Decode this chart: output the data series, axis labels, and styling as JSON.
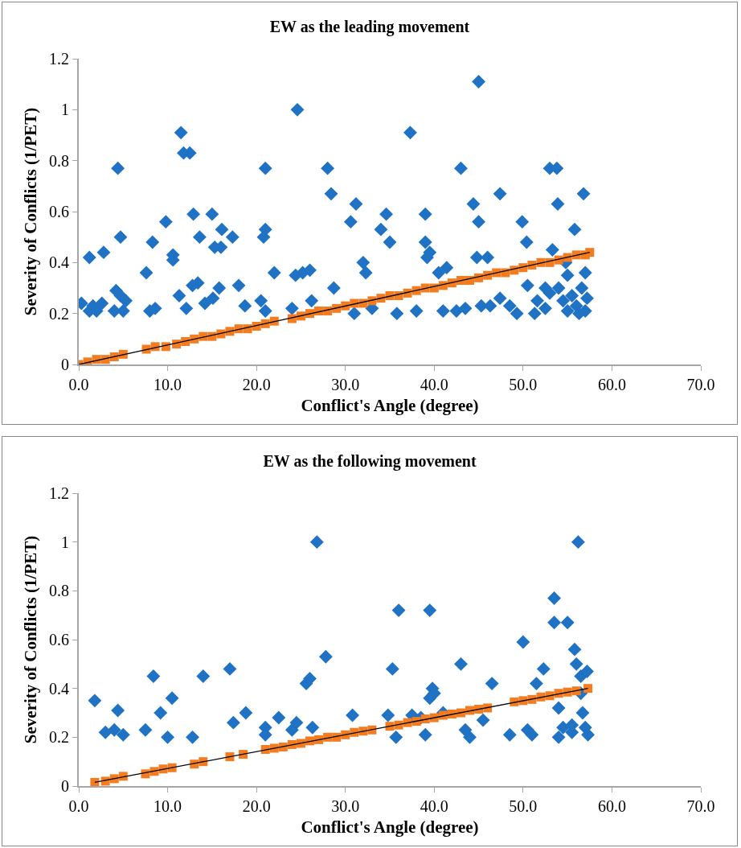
{
  "chart_data": [
    {
      "type": "scatter",
      "title": "EW as the leading movement",
      "xlabel": "Conflict's Angle (degree)",
      "ylabel": "Severity of Conflicts (1/PET)",
      "xlim": [
        0,
        70
      ],
      "ylim": [
        0,
        1.2
      ],
      "xticks": [
        {
          "value": 0,
          "label": "0.0"
        },
        {
          "value": 10,
          "label": "10.0"
        },
        {
          "value": 20,
          "label": "20.0"
        },
        {
          "value": 30,
          "label": "30.0"
        },
        {
          "value": 40,
          "label": "40.0"
        },
        {
          "value": 50,
          "label": "50.0"
        },
        {
          "value": 60,
          "label": "60.0"
        },
        {
          "value": 70,
          "label": "70.0"
        }
      ],
      "yticks": [
        0,
        0.2,
        0.4,
        0.6,
        0.8,
        1,
        1.2
      ],
      "grid": false,
      "series": [
        {
          "type": "scatter",
          "marker": "diamond",
          "color": "#1f72c4",
          "x": [
            0.3,
            1.2,
            1.2,
            1.6,
            2.0,
            2.6,
            2.8,
            4.0,
            4.2,
            4.4,
            4.7,
            4.7,
            5.0,
            5.3,
            7.6,
            8.0,
            8.3,
            8.6,
            9.8,
            10.6,
            10.6,
            11.5,
            11.3,
            11.8,
            12.1,
            12.5,
            12.8,
            12.9,
            13.6,
            13.4,
            14.2,
            15.1,
            15.0,
            15.3,
            15.8,
            16.1,
            16.0,
            17.3,
            18.0,
            18.7,
            20.5,
            20.8,
            21.0,
            21.0,
            21.0,
            22.0,
            24.4,
            24.6,
            24.0,
            25.2,
            26.0,
            26.2,
            28.0,
            28.4,
            28.7,
            30.6,
            31.2,
            31.0,
            32.0,
            32.3,
            33.0,
            34.0,
            34.6,
            35.0,
            35.8,
            37.3,
            38.0,
            39.0,
            39.0,
            39.2,
            39.5,
            40.5,
            41.0,
            41.4,
            42.5,
            43.0,
            43.5,
            44.4,
            44.8,
            45.0,
            45.0,
            45.3,
            46.0,
            46.3,
            47.4,
            47.4,
            48.5,
            49.3,
            49.9,
            50.4,
            50.5,
            51.3,
            51.6,
            52.5,
            53.0,
            53.3,
            53.8,
            53.9,
            54.0,
            54.5,
            55.0,
            55.5,
            55.8,
            56.0,
            56.3,
            56.6,
            56.8,
            57.0,
            57.0,
            57.2,
            55.0,
            54.8,
            52.5,
            53.0
          ],
          "values": [
            0.24,
            0.42,
            0.21,
            0.23,
            0.21,
            0.24,
            0.44,
            0.21,
            0.29,
            0.77,
            0.5,
            0.27,
            0.21,
            0.25,
            0.36,
            0.21,
            0.48,
            0.22,
            0.56,
            0.43,
            0.41,
            0.91,
            0.27,
            0.83,
            0.22,
            0.83,
            0.31,
            0.59,
            0.5,
            0.32,
            0.24,
            0.26,
            0.59,
            0.46,
            0.3,
            0.53,
            0.46,
            0.5,
            0.31,
            0.23,
            0.25,
            0.5,
            0.53,
            0.77,
            0.21,
            0.36,
            0.35,
            1.0,
            0.22,
            0.36,
            0.37,
            0.25,
            0.77,
            0.67,
            0.3,
            0.56,
            0.63,
            0.2,
            0.4,
            0.36,
            0.22,
            0.53,
            0.59,
            0.48,
            0.2,
            0.91,
            0.21,
            0.59,
            0.48,
            0.42,
            0.44,
            0.36,
            0.21,
            0.38,
            0.21,
            0.77,
            0.22,
            0.63,
            0.42,
            1.11,
            0.56,
            0.23,
            0.42,
            0.23,
            0.67,
            0.26,
            0.23,
            0.2,
            0.56,
            0.48,
            0.31,
            0.2,
            0.25,
            0.3,
            0.77,
            0.45,
            0.77,
            0.63,
            0.3,
            0.25,
            0.21,
            0.27,
            0.53,
            0.23,
            0.2,
            0.3,
            0.67,
            0.21,
            0.36,
            0.26,
            0.35,
            0.4,
            0.22,
            0.28
          ]
        },
        {
          "type": "scatter",
          "marker": "square",
          "color": "#f47c20",
          "x": [
            0,
            1,
            2,
            3,
            4,
            5,
            7.6,
            8.6,
            9.8,
            11,
            12,
            13,
            14,
            15,
            16,
            17,
            18,
            19,
            20,
            21,
            22,
            24,
            25,
            26,
            27,
            28,
            29,
            30,
            31,
            32,
            33,
            34,
            35,
            36,
            37,
            38,
            39,
            40,
            41,
            42,
            43,
            44,
            45,
            46,
            47,
            48,
            49,
            50,
            51,
            52,
            53,
            54,
            55,
            56,
            57,
            57.5
          ],
          "values": [
            0,
            0.01,
            0.02,
            0.02,
            0.03,
            0.04,
            0.06,
            0.07,
            0.07,
            0.08,
            0.09,
            0.1,
            0.11,
            0.11,
            0.12,
            0.13,
            0.14,
            0.14,
            0.15,
            0.16,
            0.17,
            0.18,
            0.19,
            0.2,
            0.21,
            0.21,
            0.22,
            0.23,
            0.24,
            0.24,
            0.25,
            0.26,
            0.27,
            0.27,
            0.28,
            0.29,
            0.3,
            0.3,
            0.31,
            0.32,
            0.33,
            0.33,
            0.34,
            0.35,
            0.36,
            0.36,
            0.37,
            0.38,
            0.39,
            0.4,
            0.4,
            0.41,
            0.42,
            0.43,
            0.43,
            0.44
          ]
        },
        {
          "type": "line",
          "marker": "none",
          "color": "#000000",
          "x": [
            0,
            57.5
          ],
          "values": [
            0,
            0.44
          ]
        }
      ]
    },
    {
      "type": "scatter",
      "title": "EW as the following movement",
      "xlabel": "Conflict's Angle (degree)",
      "ylabel": "Severity of Conflicts (1/PET)",
      "xlim": [
        0,
        70
      ],
      "ylim": [
        0,
        1.2
      ],
      "xticks": [
        {
          "value": 0,
          "label": "0.0"
        },
        {
          "value": 10,
          "label": "10.0"
        },
        {
          "value": 20,
          "label": "20.0"
        },
        {
          "value": 30,
          "label": "30.0"
        },
        {
          "value": 40,
          "label": "40.0"
        },
        {
          "value": 50,
          "label": "50.0"
        },
        {
          "value": 60,
          "label": "60.0"
        },
        {
          "value": 70,
          "label": "70.0"
        }
      ],
      "yticks": [
        0,
        0.2,
        0.4,
        0.6,
        0.8,
        1,
        1.2
      ],
      "grid": false,
      "series": [
        {
          "type": "scatter",
          "marker": "diamond",
          "color": "#1f72c4",
          "x": [
            1.8,
            3.0,
            4.0,
            4.4,
            5.0,
            7.5,
            8.4,
            9.2,
            10.0,
            10.5,
            12.8,
            14.0,
            17.0,
            17.4,
            18.8,
            21.0,
            21.0,
            22.5,
            24.0,
            24.5,
            25.6,
            26.0,
            26.3,
            26.8,
            27.8,
            30.8,
            34.8,
            35.3,
            35.7,
            36.0,
            37.5,
            38.5,
            39.0,
            39.5,
            39.5,
            39.8,
            40.0,
            41.0,
            42.2,
            43.0,
            43.5,
            44.0,
            46.5,
            45.5,
            48.5,
            50.0,
            50.5,
            51.0,
            51.5,
            52.3,
            53.5,
            53.5,
            54.0,
            54.5,
            55.0,
            55.5,
            55.8,
            56.0,
            56.2,
            56.5,
            56.7,
            57.0,
            57.2,
            57.3,
            55.5,
            56.5,
            54.0
          ],
          "values": [
            0.35,
            0.22,
            0.23,
            0.31,
            0.21,
            0.23,
            0.45,
            0.3,
            0.2,
            0.36,
            0.2,
            0.45,
            0.48,
            0.26,
            0.3,
            0.24,
            0.21,
            0.28,
            0.23,
            0.26,
            0.42,
            0.44,
            0.24,
            1.0,
            0.53,
            0.29,
            0.29,
            0.48,
            0.2,
            0.72,
            0.29,
            0.28,
            0.21,
            0.72,
            0.36,
            0.4,
            0.38,
            0.3,
            null,
            0.5,
            0.23,
            0.2,
            0.42,
            0.27,
            0.21,
            0.59,
            0.23,
            0.21,
            0.42,
            0.48,
            0.77,
            0.67,
            0.32,
            0.24,
            0.67,
            0.22,
            0.56,
            0.5,
            1.0,
            0.45,
            0.3,
            0.24,
            0.47,
            0.21,
            0.25,
            0.38,
            0.2
          ]
        },
        {
          "type": "scatter",
          "marker": "square",
          "color": "#f47c20",
          "x": [
            1.8,
            3,
            4,
            5,
            7.5,
            8.5,
            9.5,
            10.5,
            13,
            14,
            17,
            18.5,
            21,
            22,
            23,
            24,
            25,
            26,
            27,
            28,
            29,
            30,
            31,
            32,
            33,
            35,
            36,
            37,
            38,
            39,
            40,
            41,
            42,
            43,
            44,
            45,
            46,
            48.5,
            49,
            50,
            51,
            52,
            53,
            54,
            55,
            56,
            57.3
          ],
          "values": [
            0.015,
            0.02,
            0.03,
            0.04,
            0.05,
            0.06,
            0.07,
            0.075,
            0.09,
            0.1,
            0.12,
            0.13,
            0.15,
            0.155,
            0.16,
            0.17,
            0.175,
            0.185,
            0.19,
            0.2,
            0.2,
            0.21,
            0.22,
            0.225,
            0.23,
            0.245,
            0.25,
            0.26,
            0.265,
            0.275,
            0.28,
            0.29,
            0.295,
            0.3,
            0.31,
            0.315,
            0.32,
            null,
            0.345,
            0.35,
            0.355,
            0.365,
            0.37,
            0.38,
            0.385,
            0.39,
            0.4
          ]
        },
        {
          "type": "line",
          "marker": "none",
          "color": "#000000",
          "x": [
            1.8,
            57.3
          ],
          "values": [
            0.015,
            0.4
          ]
        }
      ]
    }
  ]
}
